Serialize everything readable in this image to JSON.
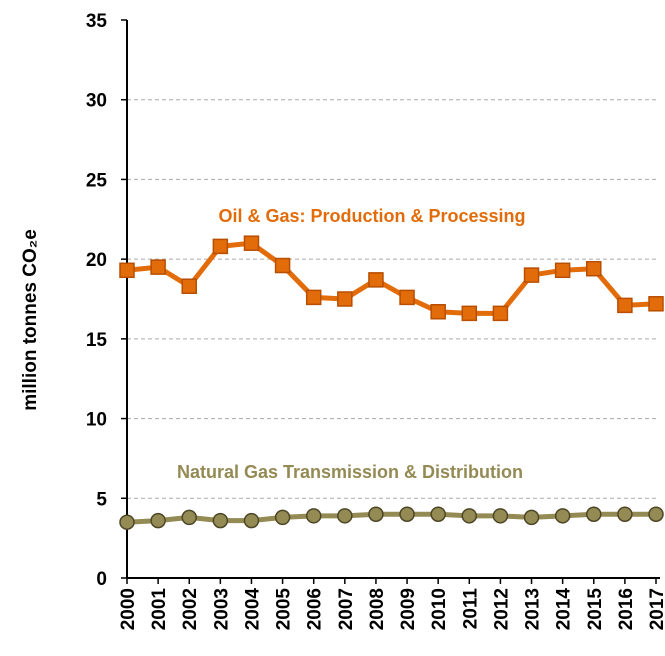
{
  "chart_data": {
    "type": "line",
    "y_label": "million tonnes CO₂e",
    "categories": [
      "2000",
      "2001",
      "2002",
      "2003",
      "2004",
      "2005",
      "2006",
      "2007",
      "2008",
      "2009",
      "2010",
      "2011",
      "2012",
      "2013",
      "2014",
      "2015",
      "2016",
      "2017"
    ],
    "series": [
      {
        "name": "Oil & Gas: Production & Processing",
        "color": "#e36c0a",
        "values": [
          19.3,
          19.5,
          18.3,
          20.8,
          21.0,
          19.6,
          17.6,
          17.5,
          18.7,
          17.6,
          16.7,
          16.6,
          16.6,
          19.0,
          19.3,
          19.4,
          17.1,
          17.2
        ]
      },
      {
        "name": "Natural Gas Transmission & Distribution",
        "color": "#948a54",
        "values": [
          3.5,
          3.6,
          3.8,
          3.6,
          3.6,
          3.8,
          3.9,
          3.9,
          4.0,
          4.0,
          4.0,
          3.9,
          3.9,
          3.8,
          3.9,
          4.0,
          4.0,
          4.0
        ]
      }
    ],
    "ylim": [
      0,
      35
    ],
    "yticks": [
      0,
      5,
      10,
      15,
      20,
      25,
      30,
      35
    ],
    "grid": true
  }
}
